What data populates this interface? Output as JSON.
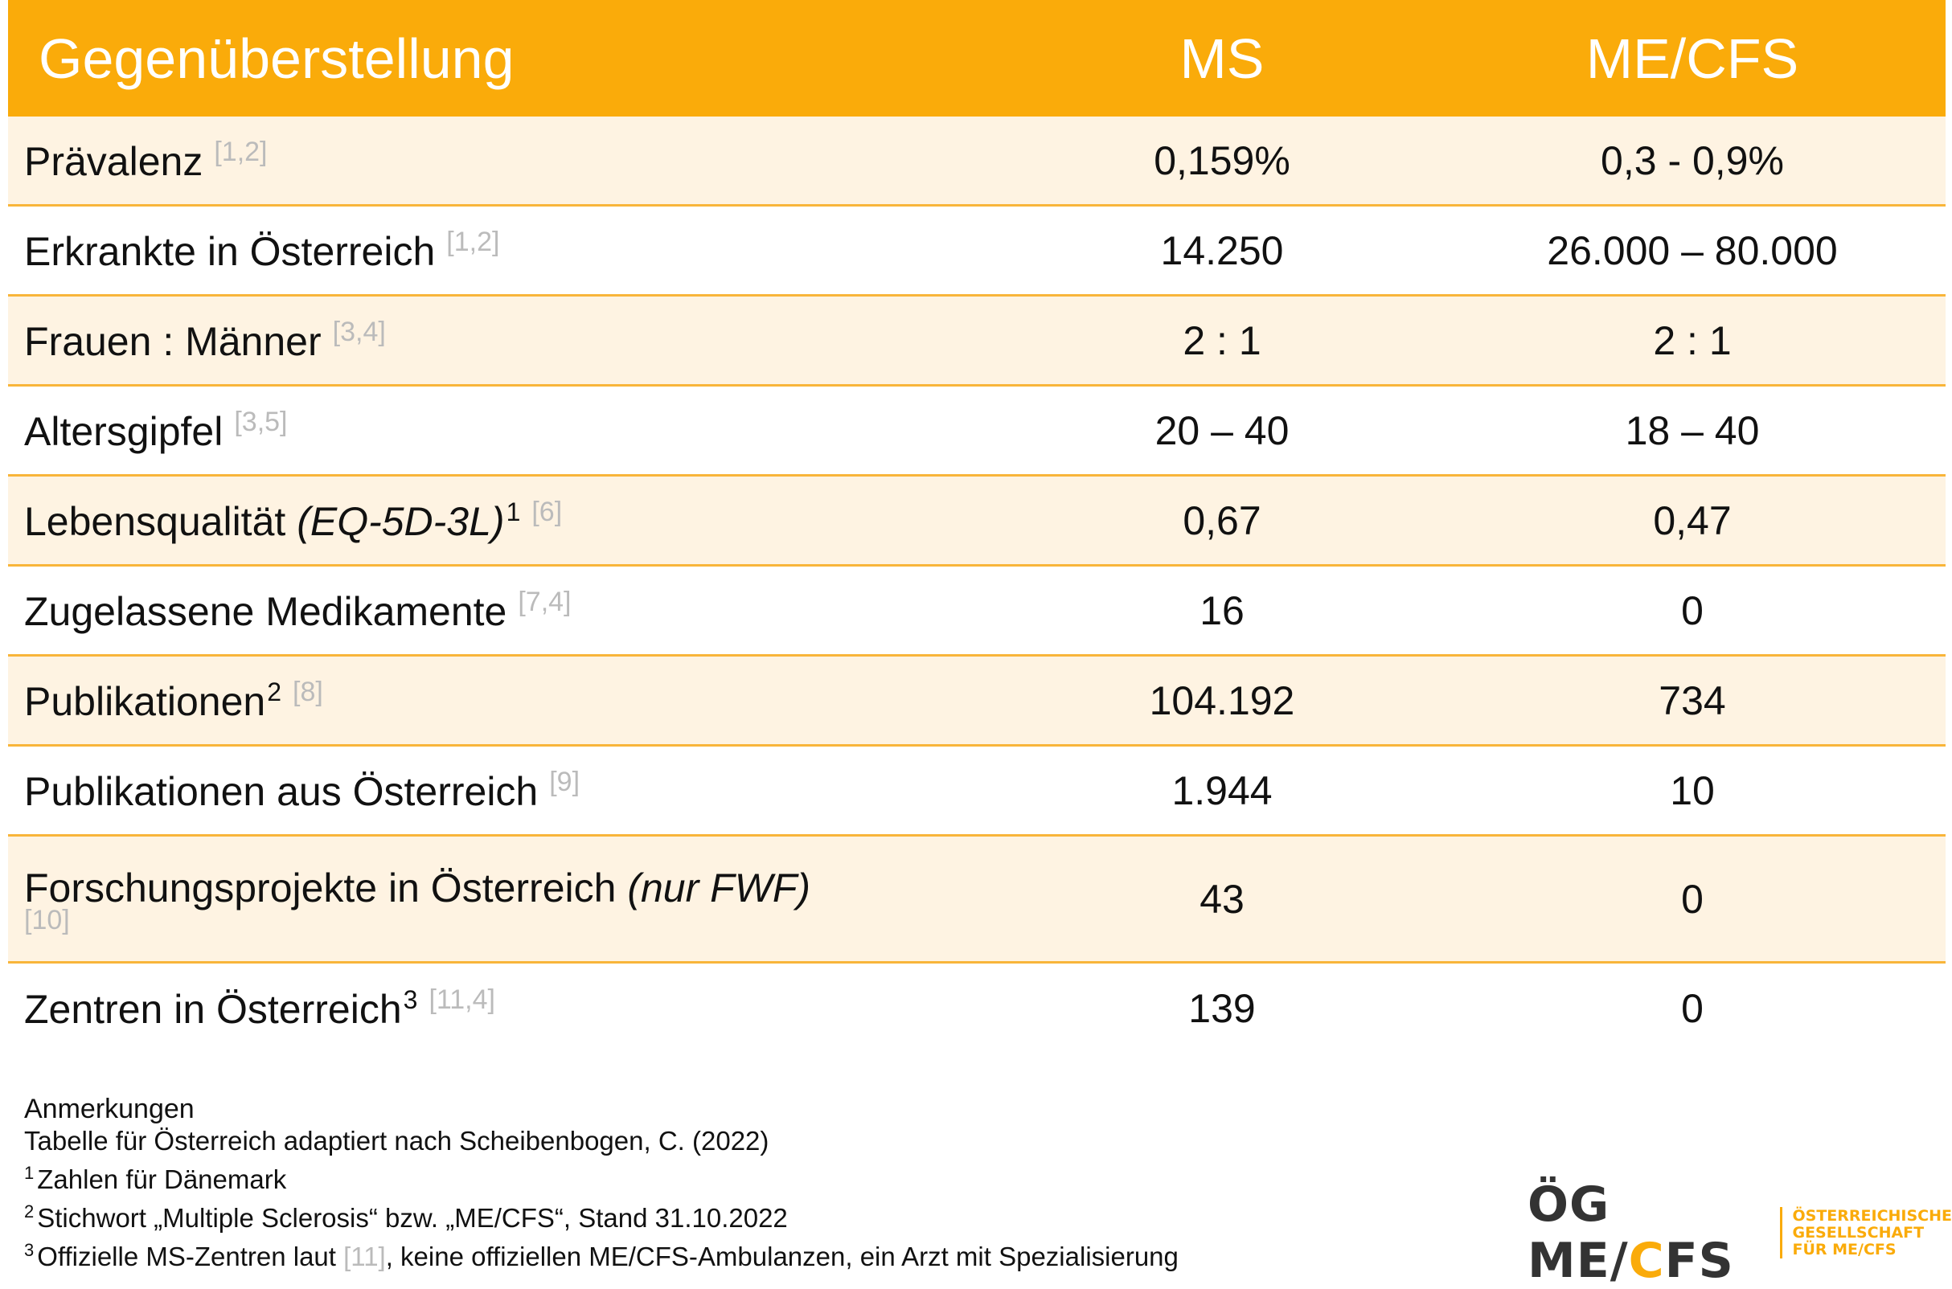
{
  "header": {
    "col1": "Gegenüberstellung",
    "col2": "MS",
    "col3": "ME/CFS"
  },
  "rows": [
    {
      "label": "Prävalenz",
      "ref": "[1,2]",
      "ms": "0,159%",
      "mecfs": "0,3 - 0,9%"
    },
    {
      "label": "Erkrankte in Österreich",
      "ref": "[1,2]",
      "ms": "14.250",
      "mecfs": "26.000 – 80.000"
    },
    {
      "label": "Frauen : Männer",
      "ref": "[3,4]",
      "ms": "2 : 1",
      "mecfs": "2 : 1"
    },
    {
      "label": "Altersgipfel",
      "ref": "[3,5]",
      "ms": "20 – 40",
      "mecfs": "18 – 40"
    },
    {
      "label": "Lebensqualität",
      "label_italic": "(EQ-5D-3L)",
      "sup": "1",
      "ref": "[6]",
      "ms": "0,67",
      "mecfs": "0,47"
    },
    {
      "label": "Zugelassene Medikamente",
      "ref": "[7,4]",
      "ms": "16",
      "mecfs": "0"
    },
    {
      "label": "Publikationen",
      "sup": "2",
      "ref": "[8]",
      "ms": "104.192",
      "mecfs": "734"
    },
    {
      "label": "Publikationen aus Österreich",
      "ref": "[9]",
      "ms": "1.944",
      "mecfs": "10"
    },
    {
      "label": "Forschungsprojekte in Österreich",
      "label_italic": "(nur FWF)",
      "ref": "[10]",
      "ms": "43",
      "mecfs": "0"
    },
    {
      "label": "Zentren in Österreich",
      "sup": "3",
      "ref": "[11,4]",
      "ms": "139",
      "mecfs": "0"
    }
  ],
  "notes": {
    "title": "Anmerkungen",
    "line1": "Tabelle für Österreich adaptiert nach Scheibenbogen, C. (2022)",
    "n1": "1",
    "line2": "Zahlen für Dänemark",
    "n2": "2",
    "line3": "Stichwort „Multiple Sclerosis“ bzw. „ME/CFS“, Stand 31.10.2022",
    "n3": "3",
    "line4_a": "Offizielle MS-Zentren laut",
    "line4_ref": "[11]",
    "line4_b": ", keine offiziellen ME/CFS-Ambulanzen, ein Arzt mit Spezialisierung"
  },
  "logo": {
    "mark_a": "ÖG ME/",
    "mark_c": "C",
    "mark_b": "FS",
    "text1": "ÖSTERREICHISCHE",
    "text2": "GESELLSCHAFT",
    "text3": "FÜR ME/CFS"
  },
  "colors": {
    "header_bg": "#FAAB0A",
    "row_shade": "#FEF3E2",
    "divider": "#F8B53A",
    "ref_gray": "#BBBBBB"
  }
}
